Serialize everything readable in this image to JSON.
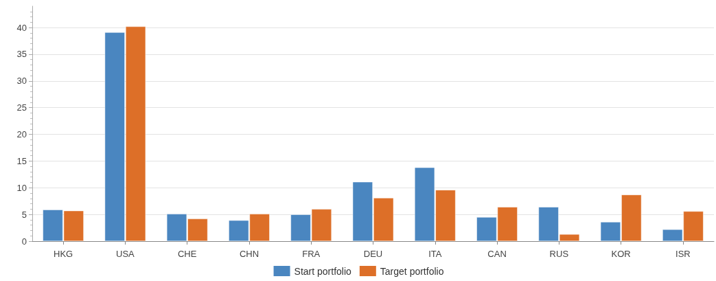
{
  "chart_data": {
    "type": "bar",
    "categories": [
      "HKG",
      "USA",
      "CHE",
      "CHN",
      "FRA",
      "DEU",
      "ITA",
      "CAN",
      "RUS",
      "KOR",
      "ISR"
    ],
    "series": [
      {
        "name": "Start portfolio",
        "color": "#4a86c0",
        "values": [
          5.9,
          39.1,
          5.1,
          3.9,
          5.0,
          11.1,
          13.8,
          4.5,
          6.4,
          3.6,
          2.2
        ]
      },
      {
        "name": "Target portfolio",
        "color": "#dd6f28",
        "values": [
          5.7,
          40.2,
          4.2,
          5.1,
          6.0,
          8.1,
          9.6,
          6.4,
          1.3,
          8.7,
          5.6
        ]
      }
    ],
    "ylim": [
      0,
      44
    ],
    "yticks": [
      0,
      5,
      10,
      15,
      20,
      25,
      30,
      35,
      40
    ],
    "grid": "y",
    "legend": "bottom"
  }
}
